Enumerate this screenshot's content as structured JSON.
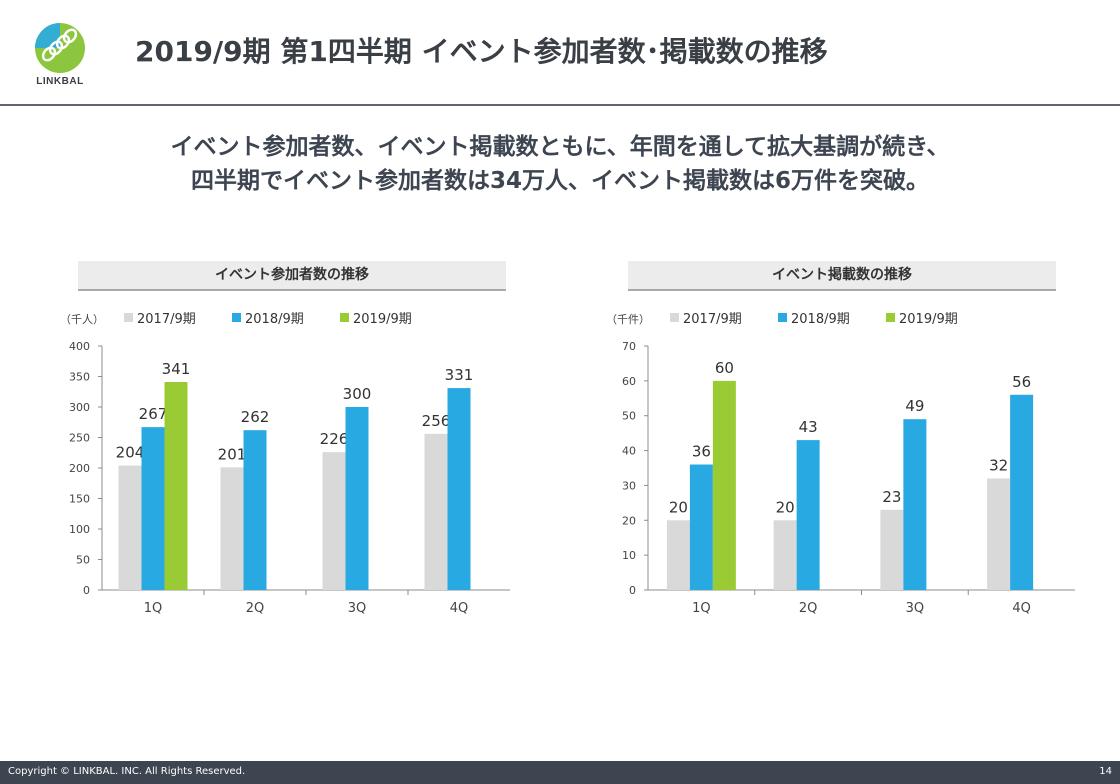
{
  "slide": {
    "title": "2019/9期 第1四半期 イベント参加者数･掲載数の推移",
    "headline_line1": "イベント参加者数、イベント掲載数ともに、年間を通して拡大基調が続き、",
    "headline_line2": "四半期でイベント参加者数は34万人、イベント掲載数は6万件を突破。",
    "logo_text": "LINKBAL",
    "footer_copyright": "Copyright © LINKBAL. INC. All Rights Reserved.",
    "page_number": "14"
  },
  "colors": {
    "series_2017": "#d9d9d9",
    "series_2018": "#29a9e1",
    "series_2019": "#9bcb34",
    "logo_green": "#8cc63e",
    "logo_blue": "#29abe2"
  },
  "chart_data": [
    {
      "type": "bar",
      "title": "イベント参加者数の推移",
      "unit_label": "（千人）",
      "categories": [
        "1Q",
        "2Q",
        "3Q",
        "4Q"
      ],
      "series": [
        {
          "name": "2017/9期",
          "values": [
            204,
            201,
            226,
            256
          ]
        },
        {
          "name": "2018/9期",
          "values": [
            267,
            262,
            300,
            331
          ]
        },
        {
          "name": "2019/9期",
          "values": [
            341,
            null,
            null,
            null
          ]
        }
      ],
      "ylim": [
        0,
        400
      ],
      "yticks": [
        0,
        50,
        100,
        150,
        200,
        250,
        300,
        350,
        400
      ],
      "grid": false,
      "legend_position": "top"
    },
    {
      "type": "bar",
      "title": "イベント掲載数の推移",
      "unit_label": "（千件）",
      "categories": [
        "1Q",
        "2Q",
        "3Q",
        "4Q"
      ],
      "series": [
        {
          "name": "2017/9期",
          "values": [
            20,
            20,
            23,
            32
          ]
        },
        {
          "name": "2018/9期",
          "values": [
            36,
            43,
            49,
            56
          ]
        },
        {
          "name": "2019/9期",
          "values": [
            60,
            null,
            null,
            null
          ]
        }
      ],
      "ylim": [
        0,
        70
      ],
      "yticks": [
        0,
        10,
        20,
        30,
        40,
        50,
        60,
        70
      ],
      "grid": false,
      "legend_position": "top"
    }
  ]
}
